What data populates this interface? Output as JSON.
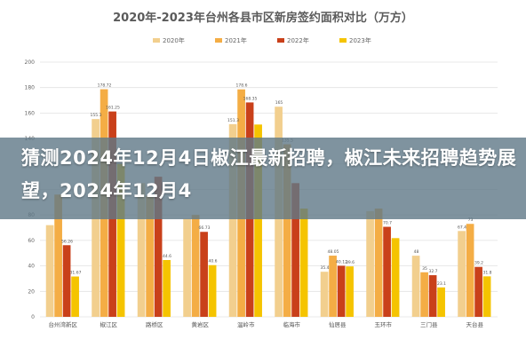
{
  "chart_data": {
    "type": "bar",
    "title": "2020年-2023年台州各县市区新房签约面积对比（万方）",
    "ylim": [
      0,
      200
    ],
    "yticks": [
      0,
      20,
      40,
      60,
      80,
      100,
      120,
      140,
      160,
      180,
      200
    ],
    "categories": [
      "台州湾新区",
      "椒江区",
      "路桥区",
      "黄岩区",
      "温岭市",
      "临海市",
      "仙居县",
      "玉环市",
      "三门县",
      "天台县"
    ],
    "series": [
      {
        "name": "2020年",
        "color": "#f2cf8e",
        "values": [
          72,
          155.3,
          105,
          77,
          151.3,
          165,
          35.4,
          83,
          48,
          67.4
        ]
      },
      {
        "name": "2021年",
        "color": "#f4ad45",
        "values": [
          96,
          178.72,
          95,
          80,
          178.6,
          135.5,
          48.05,
          85,
          35,
          73
        ]
      },
      {
        "name": "2022年",
        "color": "#c9401a",
        "values": [
          56.26,
          161.25,
          110,
          66.73,
          168.35,
          105,
          40.12,
          70.7,
          32.7,
          39.2
        ]
      },
      {
        "name": "2023年",
        "color": "#f5c400",
        "values": [
          31.67,
          120,
          44.6,
          40.6,
          151,
          85,
          39.6,
          61.8,
          23.1,
          31.8
        ]
      }
    ],
    "grid": true,
    "legend": "top-center"
  },
  "chart_value_labels": [
    [
      "",
      "",
      "56.26",
      "31.67"
    ],
    [
      "155.3",
      "178.72",
      "161.25",
      ""
    ],
    [
      "",
      "",
      "",
      "44.6"
    ],
    [
      "",
      "",
      "66.73",
      "40.6"
    ],
    [
      "151.3",
      "178.6",
      "168.35",
      ""
    ],
    [
      "165",
      "135.5",
      "",
      ""
    ],
    [
      "35.4",
      "48.05",
      "40.12",
      "39.6"
    ],
    [
      "",
      "",
      "70.7",
      ""
    ],
    [
      "48",
      "35",
      "32.7",
      "23.1"
    ],
    [
      "67.4",
      "73",
      "39.2",
      "31.8"
    ]
  ],
  "banner": {
    "text": "猜测2024年12月4日椒江最新招聘，椒江未来招聘趋势展望，2024年12月4"
  }
}
